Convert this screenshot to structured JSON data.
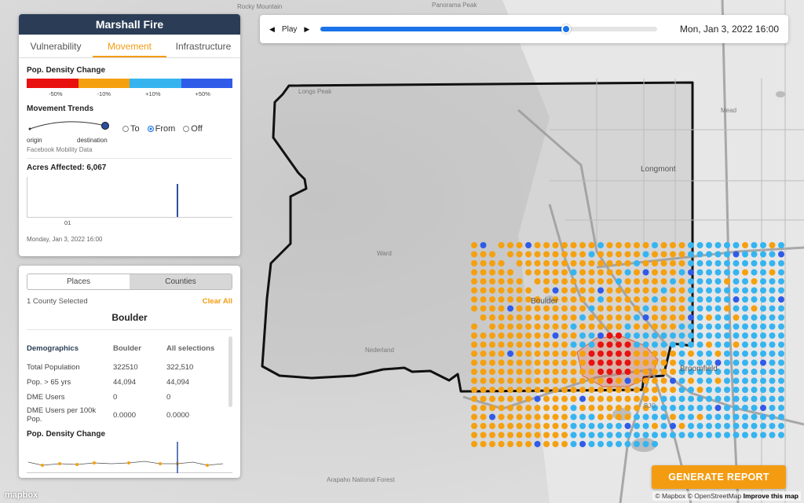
{
  "app": {
    "title": "Marshall Fire"
  },
  "tabs": [
    {
      "label": "Vulnerability",
      "active": false
    },
    {
      "label": "Movement",
      "active": true
    },
    {
      "label": "Infrastructure",
      "active": false
    }
  ],
  "legend": {
    "title": "Pop. Density Change",
    "colors": [
      "#e8110f",
      "#f5a00f",
      "#35b4f0",
      "#2f5be8"
    ],
    "ticks": [
      "-50%",
      "-10%",
      "+10%",
      "+50%"
    ]
  },
  "movement": {
    "title": "Movement Trends",
    "origin_label": "origin",
    "destination_label": "destination",
    "options": [
      {
        "label": "To",
        "selected": false
      },
      {
        "label": "From",
        "selected": true
      },
      {
        "label": "Off",
        "selected": false
      }
    ],
    "source": "Facebook Mobility Data"
  },
  "acres": {
    "label": "Acres Affected: 6,067",
    "tick": "01",
    "date": "Monday, Jan 3, 2022 16:00"
  },
  "places_panel": {
    "toggle": [
      {
        "label": "Places",
        "selected": false
      },
      {
        "label": "Counties",
        "selected": true
      }
    ],
    "selected_text": "1 County Selected",
    "clear_label": "Clear All",
    "county": "Boulder",
    "demographics": {
      "headers": [
        "Demographics",
        "Boulder",
        "All selections"
      ],
      "rows": [
        [
          "Total Population",
          "322510",
          "322,510"
        ],
        [
          "Pop. > 65 yrs",
          "44,094",
          "44,094"
        ],
        [
          "DME Users",
          "0",
          "0"
        ],
        [
          "DME Users per 100k Pop.",
          "0.0000",
          "0.0000"
        ]
      ]
    },
    "density_title": "Pop. Density Change"
  },
  "timebar": {
    "play_label": "Play",
    "prev_icon": "step-back-icon",
    "next_icon": "step-forward-icon",
    "progress": 0.73,
    "date": "Mon, Jan 3, 2022 16:00"
  },
  "map": {
    "labels": [
      "Rocky Mountain",
      "Panorama Peak",
      "Longs Peak",
      "Mead",
      "Longmont",
      "Ward",
      "Boulder",
      "Nederland",
      "Broomfield",
      "BJC",
      "Arapaho National Forest"
    ],
    "logo": "mapbox",
    "attribution": [
      "© Mapbox",
      "© OpenStreetMap",
      "Improve this map"
    ]
  },
  "report": {
    "label": "GENERATE REPORT"
  }
}
